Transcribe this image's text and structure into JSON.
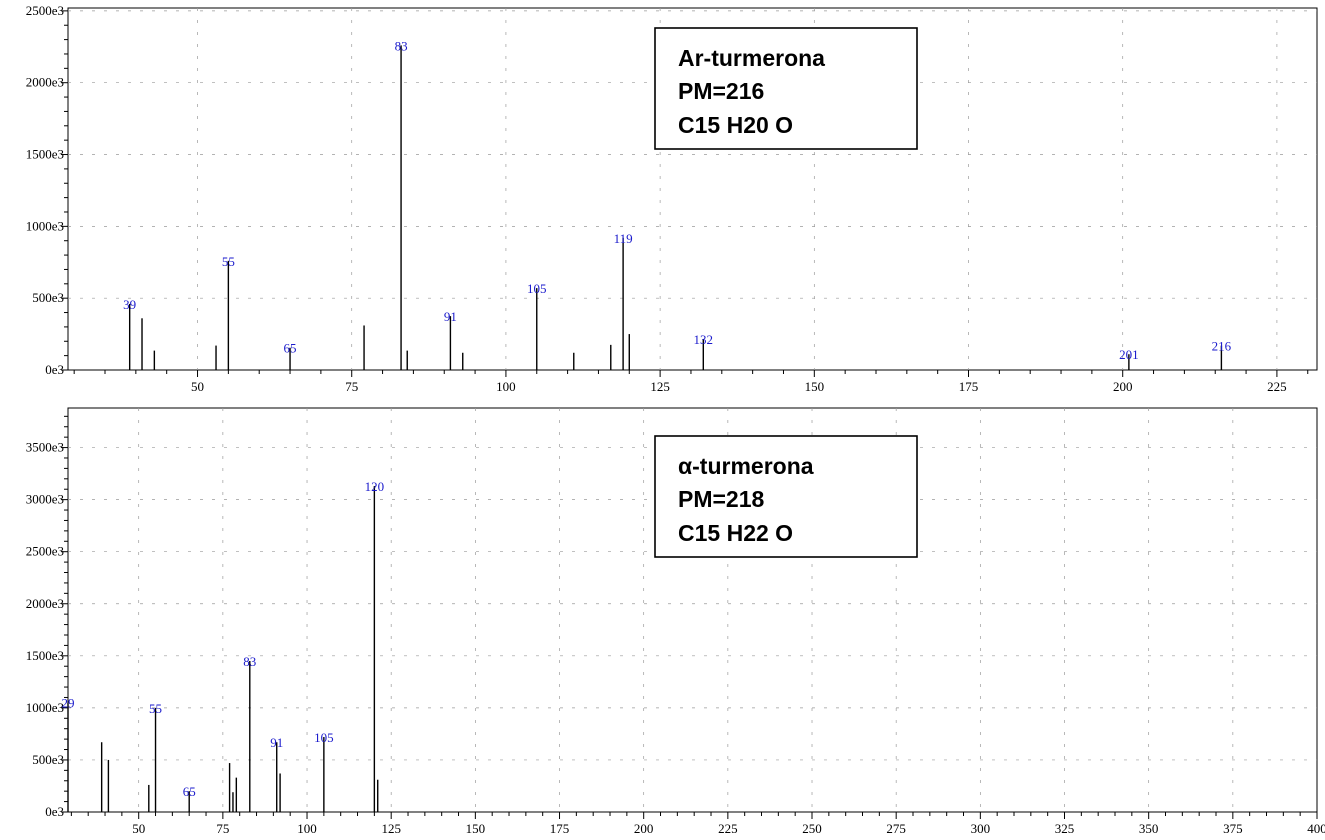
{
  "chart_data": [
    {
      "type": "bar",
      "legend_position": "top-right",
      "legend_lines": [
        "Ar-turmerona",
        "PM=216",
        "C15 H20 O"
      ],
      "xlim": [
        29,
        231.5
      ],
      "ylim": [
        0,
        2520
      ],
      "x_ticks": [
        50,
        75,
        100,
        125,
        150,
        175,
        200,
        225
      ],
      "y_ticks": [
        0,
        500,
        1000,
        1500,
        2000,
        2500
      ],
      "y_tick_labels": [
        "0e3",
        "500e3",
        "1000e3",
        "1500e3",
        "2000e3",
        "2500e3"
      ],
      "grid": true,
      "colors": {
        "bar": "#000000",
        "label": "#1a1acc",
        "grid": "#9a9a9a"
      },
      "points": [
        {
          "x": 39,
          "y": 460,
          "label": "39"
        },
        {
          "x": 41,
          "y": 360
        },
        {
          "x": 43,
          "y": 135
        },
        {
          "x": 53,
          "y": 170
        },
        {
          "x": 55,
          "y": 760,
          "label": "55"
        },
        {
          "x": 65,
          "y": 155,
          "label": "65"
        },
        {
          "x": 77,
          "y": 310
        },
        {
          "x": 83,
          "y": 2260,
          "label": "83"
        },
        {
          "x": 84,
          "y": 135
        },
        {
          "x": 91,
          "y": 375,
          "label": "91"
        },
        {
          "x": 93,
          "y": 120
        },
        {
          "x": 105,
          "y": 570,
          "label": "105"
        },
        {
          "x": 111,
          "y": 120
        },
        {
          "x": 117,
          "y": 175
        },
        {
          "x": 119,
          "y": 920,
          "label": "119"
        },
        {
          "x": 120,
          "y": 250
        },
        {
          "x": 132,
          "y": 215,
          "label": "132"
        },
        {
          "x": 201,
          "y": 110,
          "label": "201"
        },
        {
          "x": 216,
          "y": 170,
          "label": "216"
        }
      ]
    },
    {
      "type": "bar",
      "legend_position": "top-right",
      "legend_lines": [
        "α-turmerona",
        "PM=218",
        "C15 H22 O"
      ],
      "xlim": [
        29,
        400
      ],
      "ylim": [
        0,
        3880
      ],
      "x_ticks": [
        50,
        75,
        100,
        125,
        150,
        175,
        200,
        225,
        250,
        275,
        300,
        325,
        350,
        375,
        400
      ],
      "y_ticks": [
        0,
        500,
        1000,
        1500,
        2000,
        2500,
        3000,
        3500
      ],
      "y_tick_labels": [
        "0e3",
        "500e3",
        "1000e3",
        "1500e3",
        "2000e3",
        "2500e3",
        "3000e3",
        "3500e3"
      ],
      "grid": true,
      "colors": {
        "bar": "#000000",
        "label": "#1a1acc",
        "grid": "#9a9a9a"
      },
      "points": [
        {
          "x": 29,
          "y": 1050,
          "label": "29"
        },
        {
          "x": 39,
          "y": 670
        },
        {
          "x": 41,
          "y": 500
        },
        {
          "x": 53,
          "y": 260
        },
        {
          "x": 55,
          "y": 1000,
          "label": "55"
        },
        {
          "x": 65,
          "y": 200,
          "label": "65"
        },
        {
          "x": 77,
          "y": 470
        },
        {
          "x": 78,
          "y": 190
        },
        {
          "x": 79,
          "y": 330
        },
        {
          "x": 83,
          "y": 1450,
          "label": "83"
        },
        {
          "x": 91,
          "y": 670,
          "label": "91"
        },
        {
          "x": 92,
          "y": 370
        },
        {
          "x": 105,
          "y": 720,
          "label": "105"
        },
        {
          "x": 120,
          "y": 3130,
          "label": "120"
        },
        {
          "x": 121,
          "y": 310
        }
      ]
    }
  ]
}
